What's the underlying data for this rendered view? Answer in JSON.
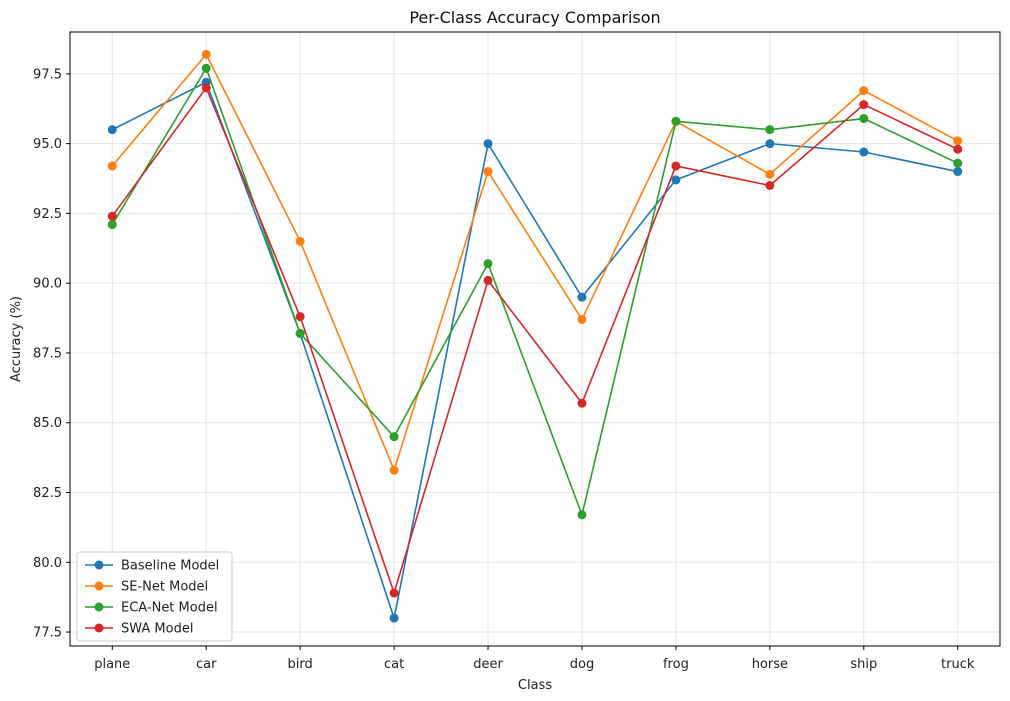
{
  "chart_data": {
    "type": "line",
    "title": "Per-Class Accuracy Comparison",
    "xlabel": "Class",
    "ylabel": "Accuracy (%)",
    "categories": [
      "plane",
      "car",
      "bird",
      "cat",
      "deer",
      "dog",
      "frog",
      "horse",
      "ship",
      "truck"
    ],
    "ylim": [
      77.0,
      99.0
    ],
    "yticks": [
      "77.5",
      "80.0",
      "82.5",
      "85.0",
      "87.5",
      "90.0",
      "92.5",
      "95.0",
      "97.5"
    ],
    "grid": true,
    "legend_position": "lower-left",
    "series": [
      {
        "name": "Baseline Model",
        "color": "#1f77b4",
        "values": [
          95.5,
          97.2,
          88.2,
          78.0,
          95.0,
          89.5,
          93.7,
          95.0,
          94.7,
          94.0
        ]
      },
      {
        "name": "SE-Net Model",
        "color": "#ff7f0e",
        "values": [
          94.2,
          98.2,
          91.5,
          83.3,
          94.0,
          88.7,
          95.8,
          93.9,
          96.9,
          95.1
        ]
      },
      {
        "name": "ECA-Net Model",
        "color": "#2ca02c",
        "values": [
          92.1,
          97.7,
          88.2,
          84.5,
          90.7,
          81.7,
          95.8,
          95.5,
          95.9,
          94.3
        ]
      },
      {
        "name": "SWA Model",
        "color": "#d62728",
        "values": [
          92.4,
          97.0,
          88.8,
          78.9,
          90.1,
          85.7,
          94.2,
          93.5,
          96.4,
          94.8
        ]
      }
    ]
  }
}
